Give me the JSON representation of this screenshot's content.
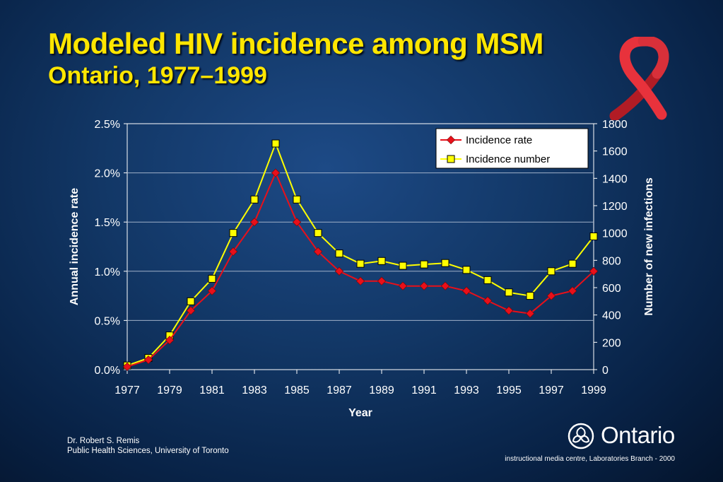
{
  "slide": {
    "title": "Modeled HIV incidence among MSM",
    "subtitle": "Ontario, 1977–1999",
    "credit_line1": "Dr. Robert S. Remis",
    "credit_line2": "Public Health Sciences, University of Toronto",
    "brand_name": "Ontario",
    "footer": "instructional media centre, Laboratories Branch - 2000",
    "colors": {
      "title": "#ffe600",
      "rate_series": "#e8101a",
      "number_series": "#ffff00",
      "ribbon": "#e8323c"
    },
    "icons": [
      "aids-ribbon-icon",
      "ontario-trillium-logo-icon"
    ]
  },
  "chart_data": {
    "type": "line",
    "xlabel": "Year",
    "ylabel_left": "Annual incidence rate",
    "ylabel_right": "Number of new infections",
    "x": [
      1977,
      1978,
      1979,
      1980,
      1981,
      1982,
      1983,
      1984,
      1985,
      1986,
      1987,
      1988,
      1989,
      1990,
      1991,
      1992,
      1993,
      1994,
      1995,
      1996,
      1997,
      1998,
      1999
    ],
    "x_tick_labels": [
      "1977",
      "1979",
      "1981",
      "1983",
      "1985",
      "1987",
      "1989",
      "1991",
      "1993",
      "1995",
      "1997",
      "1999"
    ],
    "y_left_ticks": [
      "0.0%",
      "0.5%",
      "1.0%",
      "1.5%",
      "2.0%",
      "2.5%"
    ],
    "y_right_ticks": [
      "0",
      "200",
      "400",
      "600",
      "800",
      "1000",
      "1200",
      "1400",
      "1600",
      "1800"
    ],
    "ylim_left": [
      0,
      2.5
    ],
    "ylim_right": [
      0,
      1800
    ],
    "grid": "horizontal",
    "legend_position": "top-right",
    "series": [
      {
        "name": "Incidence rate",
        "axis": "left",
        "unit": "%",
        "marker": "diamond",
        "color": "#e8101a",
        "values": [
          0.03,
          0.1,
          0.3,
          0.6,
          0.8,
          1.2,
          1.5,
          2.0,
          1.5,
          1.2,
          1.0,
          0.9,
          0.9,
          0.85,
          0.85,
          0.85,
          0.8,
          0.7,
          0.6,
          0.57,
          0.75,
          0.8,
          1.0
        ]
      },
      {
        "name": "Incidence number",
        "axis": "right",
        "unit": "infections",
        "marker": "square",
        "color": "#ffff00",
        "values": [
          30,
          85,
          250,
          500,
          665,
          1000,
          1245,
          1655,
          1245,
          1000,
          850,
          775,
          795,
          760,
          770,
          780,
          730,
          655,
          565,
          540,
          720,
          775,
          975
        ]
      }
    ]
  }
}
